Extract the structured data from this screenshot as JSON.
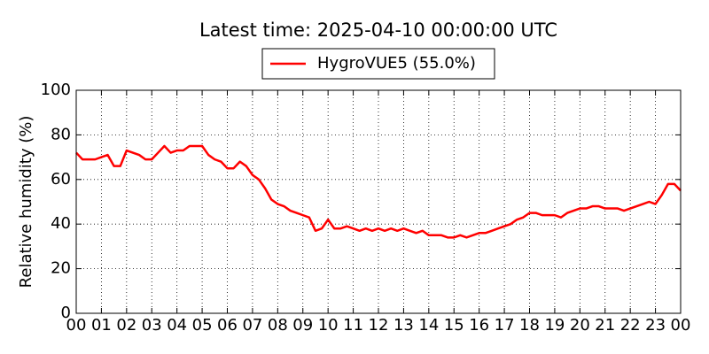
{
  "chart_data": {
    "type": "line",
    "title": "Latest time: 2025-04-10 00:00:00 UTC",
    "y_label": "Relative humidity (%)",
    "x": [
      0,
      0.25,
      0.5,
      0.75,
      1,
      1.25,
      1.5,
      1.75,
      2,
      2.25,
      2.5,
      2.75,
      3,
      3.25,
      3.5,
      3.75,
      4,
      4.25,
      4.5,
      4.75,
      5,
      5.25,
      5.5,
      5.75,
      6,
      6.25,
      6.5,
      6.75,
      7,
      7.25,
      7.5,
      7.75,
      8,
      8.25,
      8.5,
      8.75,
      9,
      9.25,
      9.5,
      9.75,
      10,
      10.25,
      10.5,
      10.75,
      11,
      11.25,
      11.5,
      11.75,
      12,
      12.25,
      12.5,
      12.75,
      13,
      13.25,
      13.5,
      13.75,
      14,
      14.25,
      14.5,
      14.75,
      15,
      15.25,
      15.5,
      15.75,
      16,
      16.25,
      16.5,
      16.75,
      17,
      17.25,
      17.5,
      17.75,
      18,
      18.25,
      18.5,
      18.75,
      19,
      19.25,
      19.5,
      19.75,
      20,
      20.25,
      20.5,
      20.75,
      21,
      21.25,
      21.5,
      21.75,
      22,
      22.25,
      22.5,
      22.75,
      23,
      23.25,
      23.5,
      23.75,
      24
    ],
    "series": [
      {
        "name": "HygroVUE5 (55.0%)",
        "color": "#ff0000",
        "values": [
          72,
          69,
          69,
          69,
          70,
          71,
          66,
          66,
          73,
          72,
          71,
          69,
          69,
          72,
          75,
          72,
          73,
          73,
          75,
          75,
          75,
          71,
          69,
          68,
          65,
          65,
          68,
          66,
          62,
          60,
          56,
          51,
          49,
          48,
          46,
          45,
          44,
          43,
          37,
          38,
          42,
          38,
          38,
          39,
          38,
          37,
          38,
          37,
          38,
          37,
          38,
          37,
          38,
          37,
          36,
          37,
          35,
          35,
          35,
          34,
          34,
          35,
          34,
          35,
          36,
          36,
          37,
          38,
          39,
          40,
          42,
          43,
          45,
          45,
          44,
          44,
          44,
          43,
          45,
          46,
          47,
          47,
          48,
          48,
          47,
          47,
          47,
          46,
          47,
          48,
          49,
          50,
          49,
          53,
          58,
          58,
          55
        ]
      }
    ],
    "xlim": [
      0,
      24
    ],
    "xticks": [
      {
        "value": 0,
        "label": "00"
      },
      {
        "value": 1,
        "label": "01"
      },
      {
        "value": 2,
        "label": "02"
      },
      {
        "value": 3,
        "label": "03"
      },
      {
        "value": 4,
        "label": "04"
      },
      {
        "value": 5,
        "label": "05"
      },
      {
        "value": 6,
        "label": "06"
      },
      {
        "value": 7,
        "label": "07"
      },
      {
        "value": 8,
        "label": "08"
      },
      {
        "value": 9,
        "label": "09"
      },
      {
        "value": 10,
        "label": "10"
      },
      {
        "value": 11,
        "label": "11"
      },
      {
        "value": 12,
        "label": "12"
      },
      {
        "value": 13,
        "label": "13"
      },
      {
        "value": 14,
        "label": "14"
      },
      {
        "value": 15,
        "label": "15"
      },
      {
        "value": 16,
        "label": "16"
      },
      {
        "value": 17,
        "label": "17"
      },
      {
        "value": 18,
        "label": "18"
      },
      {
        "value": 19,
        "label": "19"
      },
      {
        "value": 20,
        "label": "20"
      },
      {
        "value": 21,
        "label": "21"
      },
      {
        "value": 22,
        "label": "22"
      },
      {
        "value": 23,
        "label": "23"
      },
      {
        "value": 24,
        "label": "00"
      }
    ],
    "ylim": [
      0,
      100
    ],
    "yticks": [
      0,
      20,
      40,
      60,
      80,
      100
    ],
    "grid": true
  }
}
